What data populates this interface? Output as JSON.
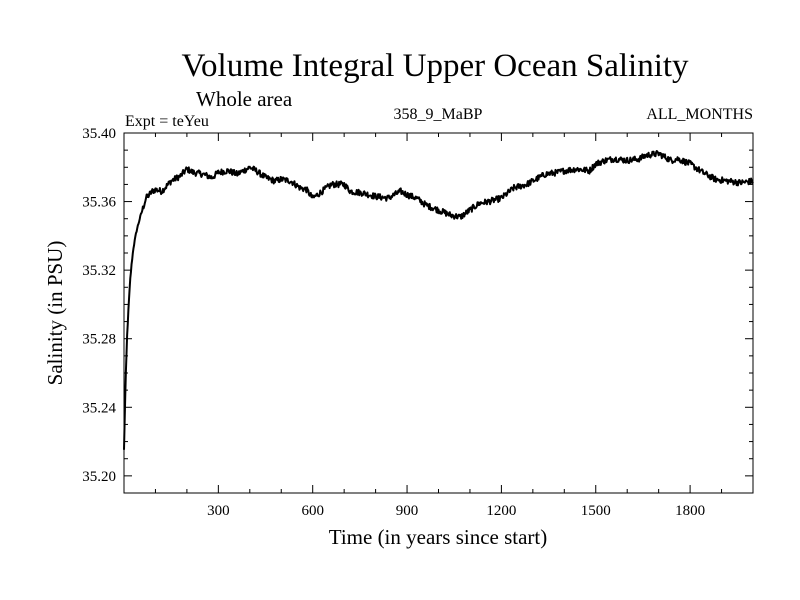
{
  "chart_data": {
    "type": "line",
    "title": "Volume Integral Upper Ocean Salinity",
    "subtitle": "Whole area",
    "expt_label": "Expt = teYeu",
    "run_label": "358_9_MaBP",
    "period_label": "ALL_MONTHS",
    "xlabel": "Time (in years since start)",
    "ylabel": "Salinity (in PSU)",
    "xlim": [
      0,
      2000
    ],
    "ylim": [
      35.19,
      35.4
    ],
    "x_ticks": [
      300,
      600,
      900,
      1200,
      1500,
      1800
    ],
    "x_tick_labels": [
      "300",
      "600",
      "900",
      "1200",
      "1500",
      "1800"
    ],
    "y_ticks": [
      35.2,
      35.24,
      35.28,
      35.32,
      35.36,
      35.4
    ],
    "y_tick_labels": [
      "35.20",
      "35.24",
      "35.28",
      "35.32",
      "35.36",
      "35.40"
    ],
    "grid": false,
    "series": [
      {
        "name": "Salinity",
        "x": [
          0,
          3,
          6,
          10,
          15,
          20,
          25,
          30,
          40,
          50,
          60,
          70,
          80,
          90,
          100,
          120,
          150,
          180,
          200,
          220,
          250,
          280,
          300,
          330,
          360,
          400,
          420,
          450,
          480,
          500,
          530,
          560,
          580,
          600,
          630,
          660,
          700,
          720,
          760,
          800,
          840,
          880,
          900,
          930,
          960,
          1000,
          1040,
          1070,
          1100,
          1130,
          1160,
          1200,
          1240,
          1280,
          1300,
          1340,
          1380,
          1400,
          1440,
          1480,
          1500,
          1530,
          1560,
          1600,
          1640,
          1660,
          1700,
          1740,
          1760,
          1800,
          1840,
          1880,
          1920,
          1960,
          2000
        ],
        "values": [
          35.215,
          35.24,
          35.26,
          35.282,
          35.3,
          35.315,
          35.325,
          35.333,
          35.343,
          35.35,
          35.356,
          35.362,
          35.364,
          35.366,
          35.367,
          35.366,
          35.372,
          35.375,
          35.379,
          35.377,
          35.376,
          35.374,
          35.377,
          35.378,
          35.376,
          35.38,
          35.378,
          35.374,
          35.372,
          35.373,
          35.372,
          35.368,
          35.367,
          35.362,
          35.366,
          35.37,
          35.37,
          35.366,
          35.365,
          35.363,
          35.362,
          35.366,
          35.364,
          35.362,
          35.358,
          35.355,
          35.352,
          35.351,
          35.355,
          35.359,
          35.36,
          35.362,
          35.368,
          35.37,
          35.372,
          35.376,
          35.377,
          35.378,
          35.379,
          35.378,
          35.382,
          35.384,
          35.385,
          35.384,
          35.385,
          35.387,
          35.388,
          35.384,
          35.385,
          35.382,
          35.377,
          35.373,
          35.372,
          35.371,
          35.372
        ]
      }
    ]
  }
}
